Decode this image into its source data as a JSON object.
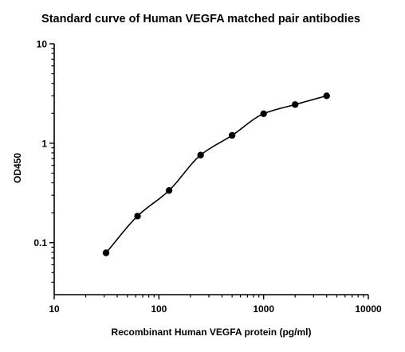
{
  "chart_data": {
    "type": "scatter",
    "title": "Standard curve of Human VEGFA matched pair antibodies",
    "xlabel": "Recombinant Human VEGFA protein (pg/ml)",
    "ylabel": "OD450",
    "x_scale": "log",
    "y_scale": "log",
    "xlim": [
      10,
      10000
    ],
    "ylim": [
      0.03,
      10
    ],
    "x_ticks": [
      10,
      100,
      1000,
      10000
    ],
    "x_tick_labels": [
      "10",
      "100",
      "1000",
      "10000"
    ],
    "y_ticks": [
      0.1,
      1,
      10
    ],
    "y_tick_labels": [
      "0.1",
      "1",
      "10"
    ],
    "grid": false,
    "legend": "none",
    "series": [
      {
        "x": [
          31.25,
          62.5,
          125,
          250,
          500,
          1000,
          2000,
          4000
        ],
        "y": [
          0.079,
          0.185,
          0.335,
          0.76,
          1.2,
          1.98,
          2.45,
          3.0
        ],
        "marker": "filled-circle",
        "color": "#000000",
        "fit_curve": true
      }
    ]
  }
}
